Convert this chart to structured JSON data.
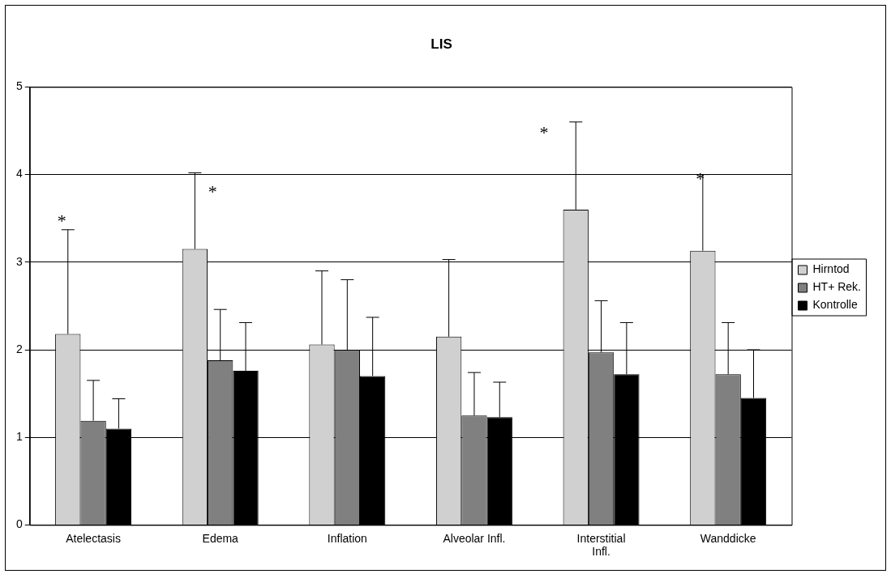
{
  "chart_data": {
    "type": "bar",
    "title": "LIS",
    "categories": [
      "Atelectasis",
      "Edema",
      "Inflation",
      "Alveolar Infl.",
      [
        "Interstitial",
        "Infl."
      ],
      "Wanddicke"
    ],
    "series": [
      {
        "name": "Hirntod",
        "color": "#d0d0d0",
        "values": [
          2.18,
          3.15,
          2.06,
          2.15,
          3.6,
          3.13
        ],
        "errors": [
          [
            2.18,
            3.37
          ],
          [
            3.15,
            4.02
          ],
          [
            2.06,
            2.9
          ],
          [
            2.15,
            3.03
          ],
          [
            3.6,
            4.6
          ],
          [
            3.13,
            4.0
          ]
        ]
      },
      {
        "name": "HT+ Rek.",
        "color": "#808080",
        "values": [
          1.19,
          1.88,
          2.0,
          1.25,
          1.97,
          1.72
        ],
        "errors": [
          [
            1.19,
            1.65
          ],
          [
            1.88,
            2.46
          ],
          [
            2.0,
            2.8
          ],
          [
            1.25,
            1.74
          ],
          [
            1.97,
            2.56
          ],
          [
            1.72,
            2.31
          ]
        ]
      },
      {
        "name": "Kontrolle",
        "color": "#000000",
        "values": [
          1.1,
          1.76,
          1.7,
          1.23,
          1.72,
          1.45
        ],
        "errors": [
          [
            1.1,
            1.44
          ],
          [
            1.76,
            2.31
          ],
          [
            1.7,
            2.37
          ],
          [
            1.23,
            1.63
          ],
          [
            1.72,
            2.31
          ],
          [
            1.45,
            2.0
          ]
        ]
      }
    ],
    "ylim": [
      0,
      5
    ],
    "yticks": [
      0,
      1,
      2,
      3,
      4,
      5
    ],
    "grid": "y",
    "legend": "right",
    "annotations": [
      "*",
      "*",
      "*",
      "*"
    ]
  }
}
